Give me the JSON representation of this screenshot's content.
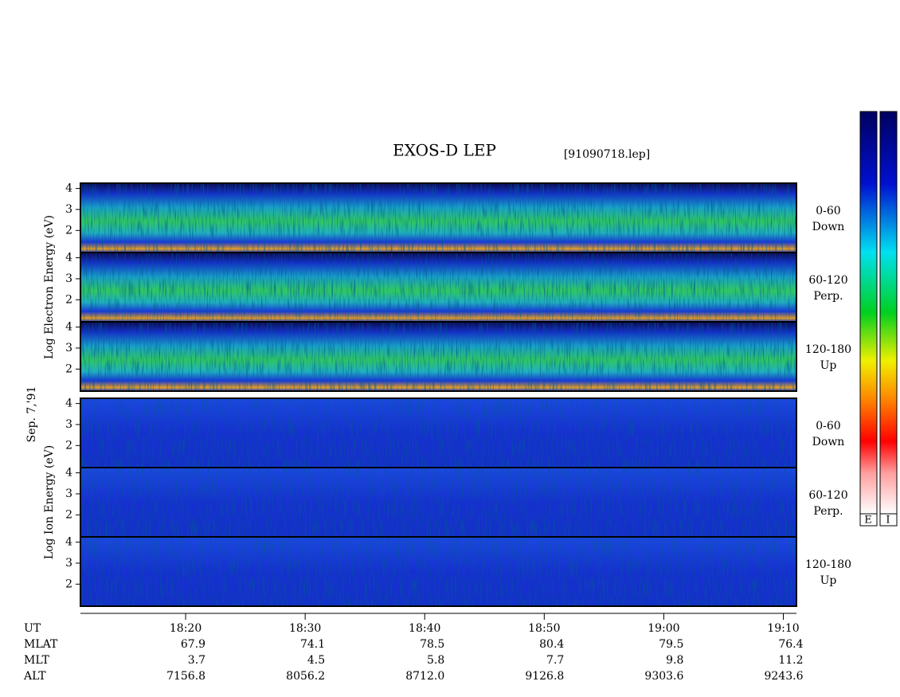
{
  "chart_data": {
    "type": "spectrogram",
    "title": "EXOS-D LEP",
    "subtitle": "[91090718.lep]",
    "date": "Sep. 7,'91",
    "groups": [
      {
        "ylabel": "Log Electron Energy (eV)",
        "panels": [
          {
            "labels": [
              "0-60",
              "Down"
            ],
            "ylim": [
              0.95,
              4.25
            ],
            "yticks": [
              2,
              3,
              4
            ]
          },
          {
            "labels": [
              "60-120",
              "Perp."
            ],
            "ylim": [
              0.95,
              4.25
            ],
            "yticks": [
              2,
              3,
              4
            ]
          },
          {
            "labels": [
              "120-180",
              "Up"
            ],
            "ylim": [
              0.95,
              4.25
            ],
            "yticks": [
              2,
              3,
              4
            ]
          }
        ]
      },
      {
        "ylabel": "Log Ion Energy (eV)",
        "panels": [
          {
            "labels": [
              "0-60",
              "Down"
            ],
            "ylim": [
              0.95,
              4.25
            ],
            "yticks": [
              2,
              3,
              4
            ]
          },
          {
            "labels": [
              "60-120",
              "Perp."
            ],
            "ylim": [
              0.95,
              4.25
            ],
            "yticks": [
              2,
              3,
              4
            ]
          },
          {
            "labels": [
              "120-180",
              "Up"
            ],
            "ylim": [
              0.95,
              4.25
            ],
            "yticks": [
              2,
              3,
              4
            ]
          }
        ]
      }
    ],
    "xlim": [
      1091.2,
      1151.1
    ],
    "xticks": [
      {
        "value": 1100,
        "label": "18:20"
      },
      {
        "value": 1110,
        "label": "18:30"
      },
      {
        "value": 1120,
        "label": "18:40"
      },
      {
        "value": 1130,
        "label": "18:50"
      },
      {
        "value": 1140,
        "label": "19:00"
      },
      {
        "value": 1150,
        "label": "19:10"
      }
    ],
    "xlabel": "UT",
    "rows": [
      {
        "label": "MLAT",
        "values": [
          "67.9",
          "74.1",
          "78.5",
          "80.4",
          "79.5",
          "76.4"
        ]
      },
      {
        "label": "MLT",
        "values": [
          "3.7",
          "4.5",
          "5.8",
          "7.7",
          "9.8",
          "11.2"
        ]
      },
      {
        "label": "ALT",
        "values": [
          "7156.8",
          "8056.2",
          "8712.0",
          "9126.8",
          "9303.6",
          "9243.6"
        ]
      }
    ],
    "colorbars": [
      "E",
      "I"
    ]
  }
}
